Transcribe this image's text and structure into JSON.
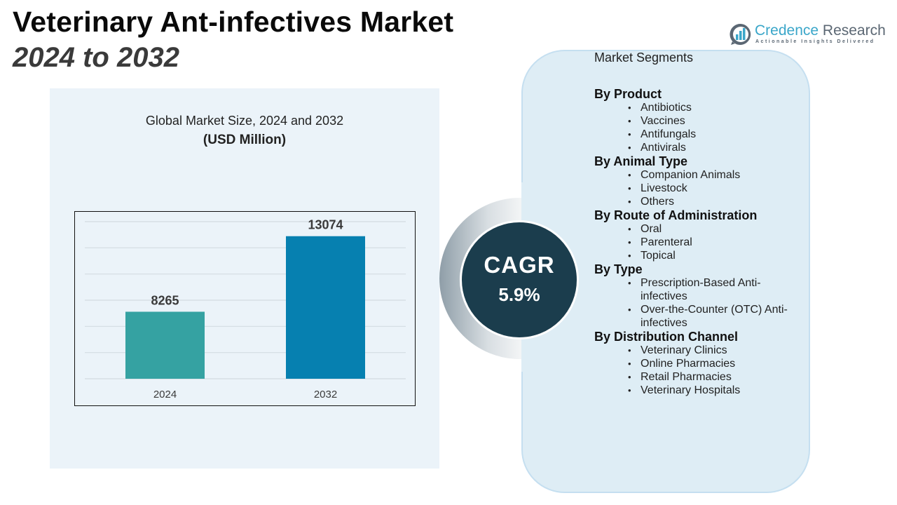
{
  "header": {
    "title": "Veterinary Ant-infectives Market",
    "subtitle": "2024 to 2032"
  },
  "logo": {
    "icon": "bar-chart-speech-bubble-icon",
    "name_part1": "Credence",
    "name_part2": " Research",
    "tagline": "Actionable Insights Delivered",
    "colors": {
      "accent": "#3aa6c9",
      "secondary": "#5b6773"
    }
  },
  "chart_panel": {
    "heading": "Global Market Size, 2024 and 2032",
    "unit": "(USD Million)"
  },
  "chart_data": {
    "type": "bar",
    "title": "Global Market Size, 2024 and 2032",
    "subtitle": "(USD Million)",
    "categories": [
      "2024",
      "2032"
    ],
    "values": [
      8265,
      13074
    ],
    "data_labels": [
      "8265",
      "13074"
    ],
    "colors": [
      "#35a2a2",
      "#0680b0"
    ],
    "xlabel": "",
    "ylabel": "",
    "ylim": [
      4000,
      14000
    ],
    "grid": true,
    "legend": "none"
  },
  "cagr": {
    "label": "CAGR",
    "value": "5.9%"
  },
  "segments": {
    "title": "Market Segments",
    "groups": [
      {
        "label": "By Product",
        "items": [
          "Antibiotics",
          "Vaccines",
          "Antifungals",
          "Antivirals"
        ]
      },
      {
        "label": "By Animal Type",
        "items": [
          "Companion Animals",
          "Livestock",
          "Others"
        ]
      },
      {
        "label": "By Route of Administration",
        "items": [
          "Oral",
          "Parenteral",
          "Topical"
        ]
      },
      {
        "label": "By Type",
        "items": [
          "Prescription-Based Anti-infectives",
          "Over-the-Counter (OTC) Anti-infectives"
        ]
      },
      {
        "label": "By Distribution Channel",
        "items": [
          "Veterinary Clinics",
          "Online Pharmacies",
          "Retail Pharmacies",
          "Veterinary Hospitals"
        ]
      }
    ]
  }
}
